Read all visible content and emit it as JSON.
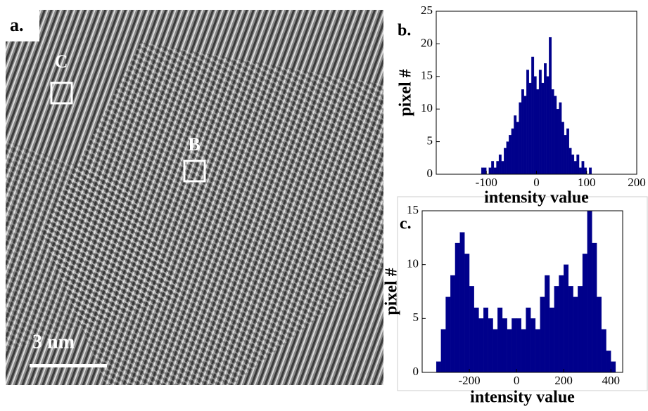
{
  "image_panel": {
    "label": "a.",
    "regions": [
      "C",
      "B"
    ],
    "scale_bar": "3 nm"
  },
  "chart_data": [
    {
      "type": "histogram",
      "label": "b.",
      "xlabel": "intensity value",
      "ylabel": "pixel #",
      "color": "#00008b",
      "bins": [
        -110,
        -105,
        -100,
        -95,
        -90,
        -85,
        -80,
        -75,
        -70,
        -65,
        -60,
        -55,
        -50,
        -45,
        -40,
        -35,
        -30,
        -25,
        -20,
        -15,
        -10,
        -5,
        0,
        5,
        10,
        15,
        20,
        25,
        30,
        35,
        40,
        45,
        50,
        55,
        60,
        65,
        70,
        75,
        80,
        85,
        90,
        95,
        100,
        105,
        110
      ],
      "values": [
        1,
        1,
        0,
        1,
        2,
        1,
        2,
        3,
        2,
        4,
        5,
        6,
        7,
        9,
        8,
        11,
        13,
        12,
        16,
        14,
        18,
        15,
        13,
        16,
        14,
        17,
        15,
        21,
        13,
        12,
        10,
        11,
        8,
        6,
        7,
        4,
        3,
        2,
        3,
        1,
        2,
        1,
        0,
        1
      ],
      "xlim": [
        -200,
        200
      ],
      "xticks": [
        -100,
        0,
        100,
        200
      ],
      "ylim": [
        0,
        25
      ],
      "yticks": [
        0,
        5,
        10,
        15,
        20,
        25
      ]
    },
    {
      "type": "histogram",
      "label": "c.",
      "xlabel": "intensity value",
      "ylabel": "pixel #",
      "color": "#00008b",
      "bins": [
        -340,
        -320,
        -300,
        -280,
        -260,
        -240,
        -220,
        -200,
        -180,
        -160,
        -140,
        -120,
        -100,
        -80,
        -60,
        -40,
        -20,
        0,
        20,
        40,
        60,
        80,
        100,
        120,
        140,
        160,
        180,
        200,
        220,
        240,
        260,
        280,
        300,
        320,
        340,
        360,
        380,
        400,
        420
      ],
      "values": [
        1,
        4,
        7,
        9,
        12,
        13,
        11,
        8,
        6,
        5,
        6,
        5,
        4,
        6,
        5,
        4,
        5,
        5,
        4,
        6,
        5,
        4,
        7,
        9,
        6,
        8,
        9,
        10,
        8,
        7,
        8,
        11,
        15,
        12,
        7,
        4,
        2,
        1
      ],
      "xlim": [
        -400,
        450
      ],
      "xticks": [
        -200,
        0,
        200,
        400
      ],
      "ylim": [
        0,
        15
      ],
      "yticks": [
        0,
        5,
        10,
        15
      ]
    }
  ]
}
